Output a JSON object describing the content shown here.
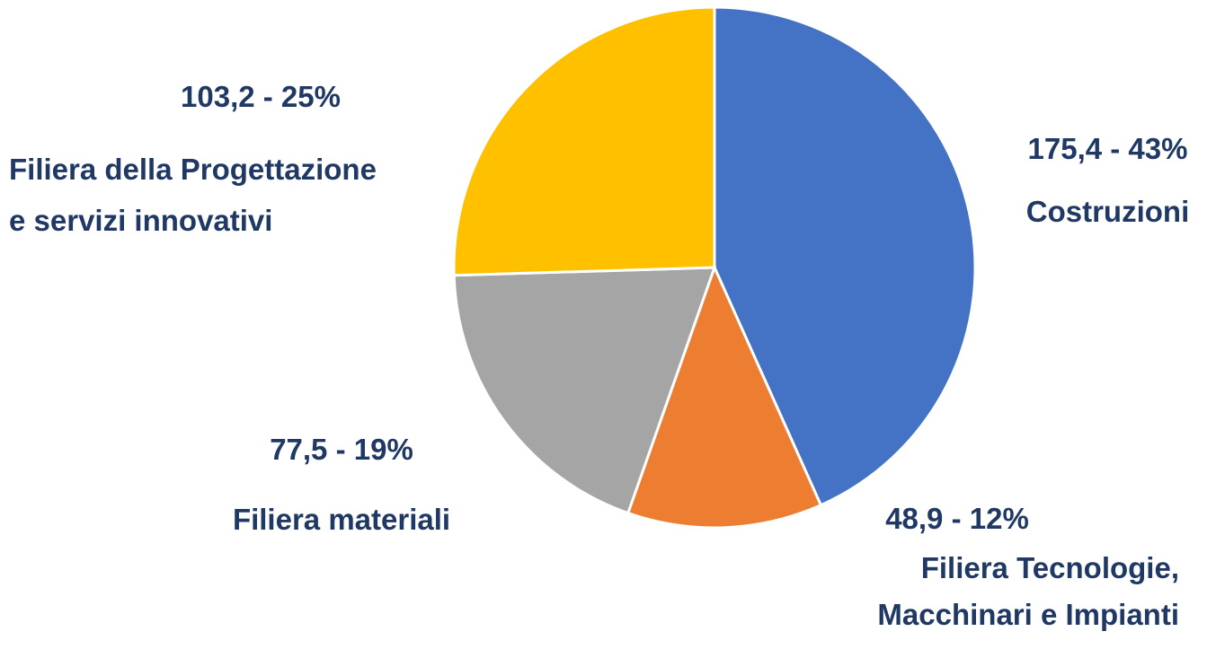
{
  "chart_data": {
    "type": "pie",
    "categories": [
      "Costruzioni",
      "Filiera Tecnologie,\nMacchinari e Impianti",
      "Filiera materiali",
      "Filiera della Progettazione\ne servizi innovativi"
    ],
    "values": [
      175.4,
      48.9,
      77.5,
      103.2
    ],
    "value_labels": [
      "175,4 - 43%",
      "48,9 - 12%",
      "77,5 - 19%",
      "103,2 - 25%"
    ],
    "colors": [
      "#4472c4",
      "#ed7d31",
      "#a5a5a5",
      "#ffc000"
    ]
  }
}
